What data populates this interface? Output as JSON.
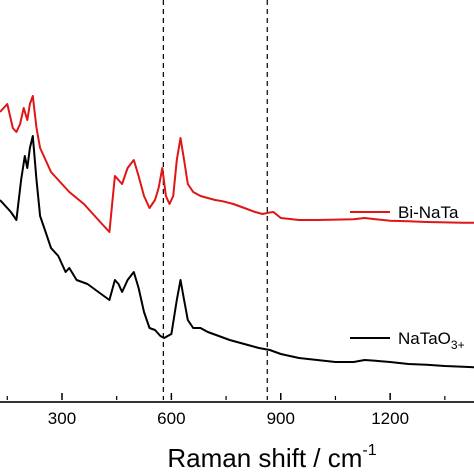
{
  "chart_data": {
    "type": "line",
    "xlabel": "Raman shift / cm",
    "xlabel_superscript": "-1",
    "xlim": [
      130,
      1430
    ],
    "ylim": [
      0,
      1
    ],
    "xticks": [
      300,
      600,
      900,
      1200
    ],
    "xtick_labels": [
      "300",
      "600",
      "900",
      "1200"
    ],
    "yaxis_labels": false,
    "grid": false,
    "legend_position": "right",
    "reference_lines": [
      {
        "x": 578,
        "style": "dashed",
        "color": "#000000"
      },
      {
        "x": 863,
        "style": "dashed",
        "color": "#000000"
      }
    ],
    "series": [
      {
        "name": "Bi-NaTa",
        "color": "#e01515",
        "x": [
          130,
          150,
          165,
          175,
          185,
          195,
          205,
          212,
          220,
          230,
          240,
          255,
          270,
          290,
          320,
          360,
          400,
          430,
          445,
          455,
          465,
          480,
          497,
          510,
          525,
          540,
          555,
          565,
          575,
          585,
          595,
          605,
          615,
          625,
          635,
          645,
          660,
          680,
          700,
          720,
          740,
          770,
          800,
          830,
          850,
          865,
          880,
          900,
          950,
          1000,
          1050,
          1100,
          1130,
          1160,
          1200,
          1250,
          1300,
          1350,
          1400,
          1430
        ],
        "y": [
          0.72,
          0.74,
          0.68,
          0.67,
          0.69,
          0.73,
          0.7,
          0.74,
          0.76,
          0.68,
          0.63,
          0.6,
          0.57,
          0.55,
          0.52,
          0.49,
          0.45,
          0.42,
          0.56,
          0.55,
          0.54,
          0.58,
          0.6,
          0.56,
          0.51,
          0.48,
          0.5,
          0.53,
          0.58,
          0.51,
          0.49,
          0.51,
          0.6,
          0.655,
          0.6,
          0.54,
          0.52,
          0.51,
          0.505,
          0.5,
          0.497,
          0.49,
          0.48,
          0.47,
          0.465,
          0.468,
          0.47,
          0.455,
          0.45,
          0.45,
          0.451,
          0.452,
          0.455,
          0.452,
          0.448,
          0.447,
          0.445,
          0.444,
          0.443,
          0.443
        ]
      },
      {
        "name": "NaTaO",
        "color": "#000000",
        "x": [
          130,
          160,
          175,
          188,
          198,
          205,
          212,
          220,
          230,
          240,
          255,
          270,
          290,
          310,
          320,
          340,
          370,
          400,
          430,
          445,
          455,
          465,
          480,
          497,
          510,
          525,
          540,
          555,
          570,
          580,
          590,
          600,
          615,
          625,
          635,
          645,
          660,
          680,
          700,
          730,
          760,
          800,
          840,
          870,
          900,
          950,
          1000,
          1050,
          1100,
          1130,
          1160,
          1200,
          1250,
          1300,
          1350,
          1400,
          1430
        ],
        "y": [
          0.5,
          0.47,
          0.45,
          0.55,
          0.61,
          0.58,
          0.63,
          0.66,
          0.55,
          0.46,
          0.42,
          0.38,
          0.36,
          0.32,
          0.33,
          0.3,
          0.29,
          0.27,
          0.25,
          0.3,
          0.29,
          0.27,
          0.3,
          0.32,
          0.28,
          0.22,
          0.18,
          0.175,
          0.16,
          0.155,
          0.16,
          0.165,
          0.25,
          0.3,
          0.25,
          0.2,
          0.18,
          0.18,
          0.17,
          0.16,
          0.15,
          0.14,
          0.13,
          0.125,
          0.115,
          0.105,
          0.1,
          0.095,
          0.095,
          0.1,
          0.098,
          0.095,
          0.09,
          0.088,
          0.085,
          0.083,
          0.082
        ]
      }
    ]
  },
  "legend": {
    "items": [
      {
        "label": "Bi-NaTa",
        "color": "#e01515"
      },
      {
        "label": "NaTaO",
        "subscript": "3+",
        "color": "#000000"
      }
    ]
  }
}
